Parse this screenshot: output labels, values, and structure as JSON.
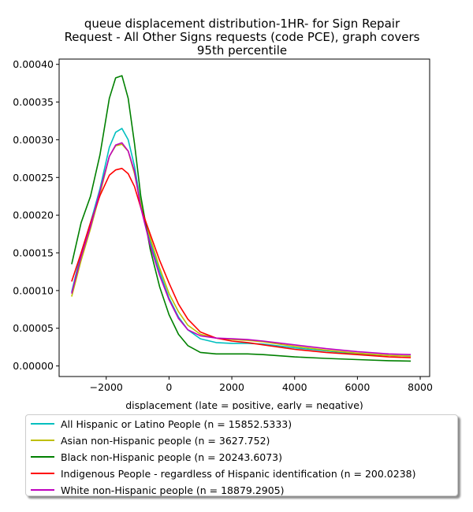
{
  "chart_data": {
    "type": "line",
    "title_lines": [
      "queue displacement distribution-1HR-  for Sign Repair",
      "Request - All Other Signs  requests (code PCE), graph covers",
      "95th percentile"
    ],
    "xlabel": "displacement (late = positive, early = negative)",
    "ylabel": "",
    "xlim": [
      -3500,
      8300
    ],
    "ylim": [
      -1.4e-05,
      0.000407
    ],
    "x_ticks": [
      -2000,
      0,
      2000,
      4000,
      6000,
      8000
    ],
    "x_tick_labels": [
      "−2000",
      "0",
      "2000",
      "4000",
      "6000",
      "8000"
    ],
    "y_ticks": [
      0,
      5e-05,
      0.0001,
      0.00015,
      0.0002,
      0.00025,
      0.0003,
      0.00035,
      0.0004
    ],
    "y_tick_labels": [
      "0.00000",
      "0.00005",
      "0.00010",
      "0.00015",
      "0.00020",
      "0.00025",
      "0.00030",
      "0.00035",
      "0.00040"
    ],
    "grid": false,
    "legend_position": "below",
    "series": [
      {
        "name": "All Hispanic or Latino People (n = 15852.5333)",
        "color": "#00bfbf",
        "x": [
          -3100,
          -2800,
          -2500,
          -2200,
          -1900,
          -1700,
          -1500,
          -1300,
          -1100,
          -900,
          -600,
          -300,
          0,
          300,
          600,
          1000,
          1500,
          2000,
          2500,
          3000,
          4000,
          5000,
          6000,
          7000,
          7700
        ],
        "y": [
          9.8e-05,
          0.00015,
          0.00019,
          0.000235,
          0.00029,
          0.00031,
          0.000315,
          0.0003,
          0.000265,
          0.000215,
          0.000165,
          0.000125,
          9e-05,
          6.5e-05,
          4.8e-05,
          3.6e-05,
          3.1e-05,
          3e-05,
          3e-05,
          2.9e-05,
          2.4e-05,
          2e-05,
          1.6e-05,
          1.4e-05,
          1.3e-05
        ]
      },
      {
        "name": "Asian non-Hispanic people (n = 3627.752)",
        "color": "#bfbf00",
        "x": [
          -3100,
          -2800,
          -2500,
          -2200,
          -1900,
          -1700,
          -1500,
          -1300,
          -1100,
          -900,
          -600,
          -300,
          0,
          300,
          600,
          1000,
          1500,
          2000,
          2500,
          3000,
          4000,
          5000,
          6000,
          7000,
          7700
        ],
        "y": [
          9.2e-05,
          0.00014,
          0.000182,
          0.000228,
          0.000278,
          0.000292,
          0.000294,
          0.000285,
          0.000255,
          0.000215,
          0.00017,
          0.00013,
          9.6e-05,
          7.2e-05,
          5.4e-05,
          4.2e-05,
          3.7e-05,
          3.5e-05,
          3.4e-05,
          3.2e-05,
          2.6e-05,
          2.1e-05,
          1.7e-05,
          1.4e-05,
          1.3e-05
        ]
      },
      {
        "name": "Black non-Hispanic people (n = 20243.6073)",
        "color": "#008000",
        "x": [
          -3100,
          -2800,
          -2500,
          -2200,
          -1900,
          -1700,
          -1500,
          -1300,
          -1100,
          -900,
          -600,
          -300,
          0,
          300,
          600,
          1000,
          1500,
          2000,
          2500,
          3000,
          4000,
          5000,
          6000,
          7000,
          7700
        ],
        "y": [
          0.000135,
          0.00019,
          0.000225,
          0.00028,
          0.000355,
          0.000382,
          0.000385,
          0.000355,
          0.000295,
          0.000225,
          0.000155,
          0.000105,
          6.8e-05,
          4.2e-05,
          2.7e-05,
          1.8e-05,
          1.6e-05,
          1.6e-05,
          1.6e-05,
          1.5e-05,
          1.2e-05,
          1e-05,
          8.5e-06,
          7e-06,
          6.5e-06
        ]
      },
      {
        "name": "Indigenous People - regardless of Hispanic identification (n = 200.0238)",
        "color": "#ff0000",
        "x": [
          -3100,
          -2800,
          -2500,
          -2200,
          -1900,
          -1700,
          -1500,
          -1300,
          -1100,
          -900,
          -600,
          -300,
          0,
          300,
          600,
          1000,
          1500,
          2000,
          2500,
          3000,
          4000,
          5000,
          6000,
          7000,
          7700
        ],
        "y": [
          0.000112,
          0.00015,
          0.00019,
          0.000226,
          0.000253,
          0.00026,
          0.000262,
          0.000255,
          0.000238,
          0.00021,
          0.000175,
          0.00014,
          0.00011,
          8.2e-05,
          6.2e-05,
          4.5e-05,
          3.7e-05,
          3.3e-05,
          3.1e-05,
          2.8e-05,
          2.2e-05,
          1.8e-05,
          1.5e-05,
          1.2e-05,
          1.1e-05
        ]
      },
      {
        "name": "White non-Hispanic people (n = 18879.2905)",
        "color": "#bf00bf",
        "x": [
          -3100,
          -2800,
          -2500,
          -2200,
          -1900,
          -1700,
          -1500,
          -1300,
          -1100,
          -900,
          -600,
          -300,
          0,
          300,
          600,
          1000,
          1500,
          2000,
          2500,
          3000,
          4000,
          5000,
          6000,
          7000,
          7700
        ],
        "y": [
          9.6e-05,
          0.000145,
          0.000185,
          0.000232,
          0.000278,
          0.000293,
          0.000296,
          0.000285,
          0.000258,
          0.00021,
          0.00016,
          0.00012,
          8.8e-05,
          6.3e-05,
          4.8e-05,
          4e-05,
          3.7e-05,
          3.6e-05,
          3.5e-05,
          3.3e-05,
          2.8e-05,
          2.3e-05,
          1.9e-05,
          1.6e-05,
          1.5e-05
        ]
      }
    ]
  }
}
